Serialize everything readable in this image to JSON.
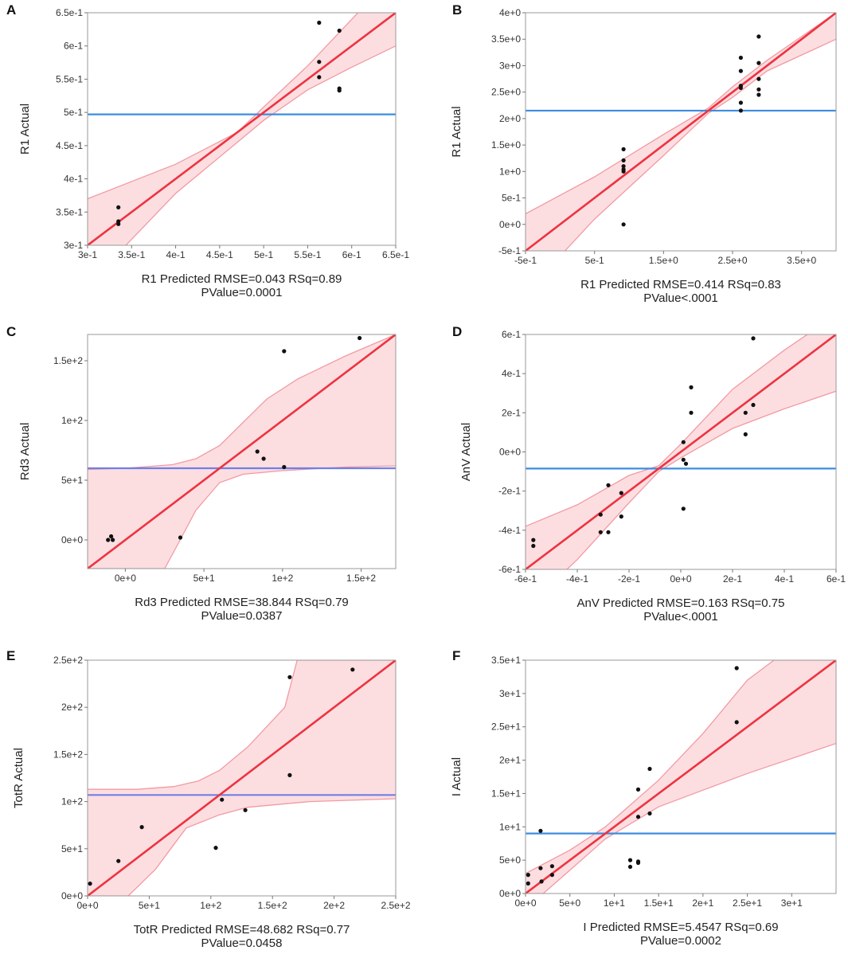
{
  "colors": {
    "band_fill": "#fcd8dc",
    "band_edge": "#f29aa3",
    "fit_line": "#ee3340",
    "mean_line_a": "#3b8de0",
    "mean_line_b": "#6f7fe6",
    "point": "#111111"
  },
  "chart_data": [
    {
      "type": "scatter",
      "panel": "A",
      "xlabel": "R1 Predicted RMSE=0.043 RSq=0.89",
      "xlabel2": "PValue=0.0001",
      "ylabel": "R1 Actual",
      "xlim": [
        0.3,
        0.65
      ],
      "ylim": [
        0.3,
        0.65
      ],
      "xticks": [
        0.3,
        0.35,
        0.4,
        0.45,
        0.5,
        0.55,
        0.6,
        0.65
      ],
      "xtick_labels": [
        "3e-1",
        "3.5e-1",
        "4e-1",
        "4.5e-1",
        "5e-1",
        "5.5e-1",
        "6e-1",
        "6.5e-1"
      ],
      "yticks": [
        0.3,
        0.35,
        0.4,
        0.45,
        0.5,
        0.55,
        0.6,
        0.65
      ],
      "ytick_labels": [
        "3e-1",
        "3.5e-1",
        "4e-1",
        "4.5e-1",
        "5e-1",
        "5.5e-1",
        "6e-1",
        "6.5e-1"
      ],
      "mean_y": 0.497,
      "fit": {
        "x0": 0.3,
        "y0": 0.3,
        "x1": 0.65,
        "y1": 0.65
      },
      "band": {
        "upper": [
          [
            0.3,
            0.37
          ],
          [
            0.4,
            0.422
          ],
          [
            0.47,
            0.47
          ],
          [
            0.5,
            0.508
          ],
          [
            0.55,
            0.57
          ],
          [
            0.6,
            0.64
          ],
          [
            0.65,
            0.71
          ]
        ],
        "lower": [
          [
            0.3,
            0.24
          ],
          [
            0.4,
            0.378
          ],
          [
            0.47,
            0.455
          ],
          [
            0.5,
            0.488
          ],
          [
            0.55,
            0.534
          ],
          [
            0.6,
            0.568
          ],
          [
            0.65,
            0.6
          ]
        ]
      },
      "points": [
        [
          0.335,
          0.357
        ],
        [
          0.335,
          0.336
        ],
        [
          0.335,
          0.332
        ],
        [
          0.563,
          0.635
        ],
        [
          0.563,
          0.576
        ],
        [
          0.563,
          0.553
        ],
        [
          0.586,
          0.623
        ],
        [
          0.586,
          0.536
        ],
        [
          0.586,
          0.533
        ]
      ]
    },
    {
      "type": "scatter",
      "panel": "B",
      "xlabel": "R1 Predicted RMSE=0.414 RSq=0.83",
      "xlabel2": "PValue<.0001",
      "ylabel": "R1 Actual",
      "xlim": [
        -0.5,
        4.0
      ],
      "ylim": [
        -0.5,
        4.0
      ],
      "xticks": [
        -0.5,
        0.5,
        1.5,
        2.5,
        3.5
      ],
      "xtick_labels": [
        "-5e-1",
        "5e-1",
        "1.5e+0",
        "2.5e+0",
        "3.5e+0"
      ],
      "yticks": [
        -0.5,
        0,
        0.5,
        1,
        1.5,
        2,
        2.5,
        3,
        3.5,
        4
      ],
      "ytick_labels": [
        "-5e-1",
        "0e+0",
        "5e-1",
        "1e+0",
        "1.5e+0",
        "2e+0",
        "2.5e+0",
        "3e+0",
        "3.5e+0",
        "4e+0"
      ],
      "mean_y": 2.15,
      "fit": {
        "x0": -0.5,
        "y0": -0.5,
        "x1": 4.0,
        "y1": 4.0
      },
      "band": {
        "upper": [
          [
            -0.5,
            0.2
          ],
          [
            0.5,
            0.9
          ],
          [
            1.5,
            1.7
          ],
          [
            2.15,
            2.2
          ],
          [
            2.5,
            2.6
          ],
          [
            3.0,
            3.1
          ],
          [
            4.0,
            4.0
          ]
        ],
        "lower": [
          [
            -0.5,
            -1.3
          ],
          [
            0.5,
            0.1
          ],
          [
            1.5,
            1.3
          ],
          [
            2.15,
            2.1
          ],
          [
            2.5,
            2.4
          ],
          [
            3.0,
            2.9
          ],
          [
            4.0,
            3.5
          ]
        ]
      },
      "points": [
        [
          0.92,
          1.42
        ],
        [
          0.92,
          1.21
        ],
        [
          0.92,
          1.1
        ],
        [
          0.92,
          1.04
        ],
        [
          0.92,
          1.0
        ],
        [
          0.92,
          0.0
        ],
        [
          2.62,
          3.15
        ],
        [
          2.62,
          2.9
        ],
        [
          2.62,
          2.62
        ],
        [
          2.62,
          2.58
        ],
        [
          2.62,
          2.3
        ],
        [
          2.62,
          2.15
        ],
        [
          2.88,
          3.55
        ],
        [
          2.88,
          3.05
        ],
        [
          2.88,
          2.75
        ],
        [
          2.88,
          2.55
        ],
        [
          2.88,
          2.45
        ]
      ]
    },
    {
      "type": "scatter",
      "panel": "C",
      "xlabel": "Rd3 Predicted RMSE=38.844 RSq=0.79",
      "xlabel2": "PValue=0.0387",
      "ylabel": "Rd3 Actual",
      "xlim": [
        -24,
        172
      ],
      "ylim": [
        -24,
        172
      ],
      "xticks": [
        0,
        50,
        100,
        150
      ],
      "xtick_labels": [
        "0e+0",
        "5e+1",
        "1e+2",
        "1.5e+2"
      ],
      "yticks": [
        0,
        50,
        100,
        150
      ],
      "ytick_labels": [
        "0e+0",
        "5e+1",
        "1e+2",
        "1.5e+2"
      ],
      "mean_y": 60,
      "fit": {
        "x0": -24,
        "y0": -24,
        "x1": 172,
        "y1": 172
      },
      "band": {
        "upper": [
          [
            -24,
            59
          ],
          [
            0,
            60
          ],
          [
            30,
            63
          ],
          [
            45,
            68
          ],
          [
            60,
            79
          ],
          [
            70,
            92
          ],
          [
            90,
            118
          ],
          [
            110,
            135
          ],
          [
            140,
            154
          ],
          [
            172,
            172
          ]
        ],
        "lower": [
          [
            -24,
            -24
          ],
          [
            25,
            -24
          ],
          [
            30,
            -12
          ],
          [
            45,
            25
          ],
          [
            60,
            48
          ],
          [
            75,
            55
          ],
          [
            100,
            58
          ],
          [
            140,
            61
          ],
          [
            172,
            62
          ]
        ]
      },
      "points": [
        [
          -11,
          0
        ],
        [
          -9,
          3
        ],
        [
          -8,
          0
        ],
        [
          35,
          2
        ],
        [
          84,
          74
        ],
        [
          88,
          68
        ],
        [
          101,
          61
        ],
        [
          101,
          158
        ],
        [
          149,
          169
        ]
      ]
    },
    {
      "type": "scatter",
      "panel": "D",
      "xlabel": "AnV Predicted RMSE=0.163 RSq=0.75",
      "xlabel2": "PValue<.0001",
      "ylabel": "AnV Actual",
      "xlim": [
        -0.6,
        0.6
      ],
      "ylim": [
        -0.6,
        0.6
      ],
      "xticks": [
        -0.6,
        -0.4,
        -0.2,
        0,
        0.2,
        0.4,
        0.6
      ],
      "xtick_labels": [
        "-6e-1",
        "-4e-1",
        "-2e-1",
        "0e+0",
        "2e-1",
        "4e-1",
        "6e-1"
      ],
      "yticks": [
        -0.6,
        -0.4,
        -0.2,
        0,
        0.2,
        0.4,
        0.6
      ],
      "ytick_labels": [
        "-6e-1",
        "-4e-1",
        "-2e-1",
        "0e+0",
        "2e-1",
        "4e-1",
        "6e-1"
      ],
      "mean_y": -0.085,
      "fit": {
        "x0": -0.6,
        "y0": -0.6,
        "x1": 0.6,
        "y1": 0.6
      },
      "band": {
        "upper": [
          [
            -0.6,
            -0.38
          ],
          [
            -0.4,
            -0.27
          ],
          [
            -0.2,
            -0.12
          ],
          [
            -0.085,
            -0.07
          ],
          [
            0.0,
            0.04
          ],
          [
            0.2,
            0.32
          ],
          [
            0.4,
            0.52
          ],
          [
            0.6,
            0.7
          ]
        ],
        "lower": [
          [
            -0.6,
            -0.8
          ],
          [
            -0.4,
            -0.55
          ],
          [
            -0.2,
            -0.26
          ],
          [
            -0.085,
            -0.1
          ],
          [
            0.0,
            -0.03
          ],
          [
            0.2,
            0.12
          ],
          [
            0.4,
            0.22
          ],
          [
            0.6,
            0.31
          ]
        ]
      },
      "points": [
        [
          -0.57,
          -0.45
        ],
        [
          -0.57,
          -0.48
        ],
        [
          -0.31,
          -0.32
        ],
        [
          -0.31,
          -0.41
        ],
        [
          -0.28,
          -0.17
        ],
        [
          -0.28,
          -0.41
        ],
        [
          -0.23,
          -0.21
        ],
        [
          -0.23,
          -0.33
        ],
        [
          0.01,
          0.05
        ],
        [
          0.01,
          -0.04
        ],
        [
          0.02,
          -0.06
        ],
        [
          0.01,
          -0.29
        ],
        [
          0.04,
          0.33
        ],
        [
          0.04,
          0.2
        ],
        [
          0.25,
          0.2
        ],
        [
          0.25,
          0.09
        ],
        [
          0.28,
          0.58
        ],
        [
          0.28,
          0.24
        ]
      ]
    },
    {
      "type": "scatter",
      "panel": "E",
      "xlabel": "TotR Predicted RMSE=48.682 RSq=0.77",
      "xlabel2": "PValue=0.0458",
      "ylabel": "TotR Actual",
      "xlim": [
        0,
        250
      ],
      "ylim": [
        0,
        250
      ],
      "xticks": [
        0,
        50,
        100,
        150,
        200,
        250
      ],
      "xtick_labels": [
        "0e+0",
        "5e+1",
        "1e+2",
        "1.5e+2",
        "2e+2",
        "2.5e+2"
      ],
      "yticks": [
        0,
        50,
        100,
        150,
        200,
        250
      ],
      "ytick_labels": [
        "0e+0",
        "5e+1",
        "1e+2",
        "1.5e+2",
        "2e+2",
        "2.5e+2"
      ],
      "mean_y": 107,
      "fit": {
        "x0": 0,
        "y0": 0,
        "x1": 250,
        "y1": 250
      },
      "band": {
        "upper": [
          [
            0,
            113
          ],
          [
            40,
            113
          ],
          [
            70,
            116
          ],
          [
            90,
            122
          ],
          [
            107,
            133
          ],
          [
            130,
            158
          ],
          [
            160,
            200
          ],
          [
            170,
            250
          ],
          [
            250,
            250
          ]
        ],
        "lower": [
          [
            0,
            0
          ],
          [
            33,
            0
          ],
          [
            55,
            28
          ],
          [
            80,
            72
          ],
          [
            107,
            86
          ],
          [
            130,
            94
          ],
          [
            180,
            100
          ],
          [
            250,
            103
          ]
        ]
      },
      "points": [
        [
          2,
          13
        ],
        [
          25,
          37
        ],
        [
          44,
          73
        ],
        [
          104,
          51
        ],
        [
          109,
          102
        ],
        [
          128,
          91
        ],
        [
          164,
          232
        ],
        [
          164,
          128
        ],
        [
          215,
          240
        ]
      ]
    },
    {
      "type": "scatter",
      "panel": "F",
      "xlabel": "I Predicted RMSE=5.4547 RSq=0.69",
      "xlabel2": "PValue=0.0002",
      "ylabel": "I Actual",
      "xlim": [
        0,
        35
      ],
      "ylim": [
        0,
        35
      ],
      "xticks": [
        0,
        5,
        10,
        15,
        20,
        25,
        30
      ],
      "xtick_labels": [
        "0e+0",
        "5e+0",
        "1e+1",
        "1.5e+1",
        "2e+1",
        "2.5e+1",
        "3e+1"
      ],
      "yticks": [
        0,
        5,
        10,
        15,
        20,
        25,
        30,
        35
      ],
      "ytick_labels": [
        "0e+0",
        "5e+0",
        "1e+1",
        "1.5e+1",
        "2e+1",
        "2.5e+1",
        "3e+1",
        "3.5e+1"
      ],
      "mean_y": 9,
      "fit": {
        "x0": 0,
        "y0": 0,
        "x1": 35,
        "y1": 35
      },
      "band": {
        "upper": [
          [
            0,
            3
          ],
          [
            5,
            6.5
          ],
          [
            9,
            10
          ],
          [
            15,
            17
          ],
          [
            20,
            24
          ],
          [
            25,
            32
          ],
          [
            28,
            35
          ],
          [
            35,
            35
          ]
        ],
        "lower": [
          [
            0,
            0
          ],
          [
            2,
            0
          ],
          [
            5,
            3.5
          ],
          [
            9,
            8.2
          ],
          [
            15,
            13
          ],
          [
            20,
            15.5
          ],
          [
            25,
            18
          ],
          [
            35,
            22.5
          ]
        ]
      },
      "points": [
        [
          0.3,
          1.5
        ],
        [
          0.3,
          2.8
        ],
        [
          1.7,
          3.8
        ],
        [
          1.7,
          9.4
        ],
        [
          1.8,
          1.8
        ],
        [
          3.0,
          4.1
        ],
        [
          3.0,
          2.8
        ],
        [
          11.8,
          5.0
        ],
        [
          11.8,
          4.0
        ],
        [
          12.7,
          4.6
        ],
        [
          12.7,
          4.8
        ],
        [
          12.7,
          11.5
        ],
        [
          12.7,
          15.6
        ],
        [
          14.0,
          12.0
        ],
        [
          14.0,
          18.7
        ],
        [
          23.8,
          33.8
        ],
        [
          23.8,
          25.7
        ]
      ]
    }
  ]
}
